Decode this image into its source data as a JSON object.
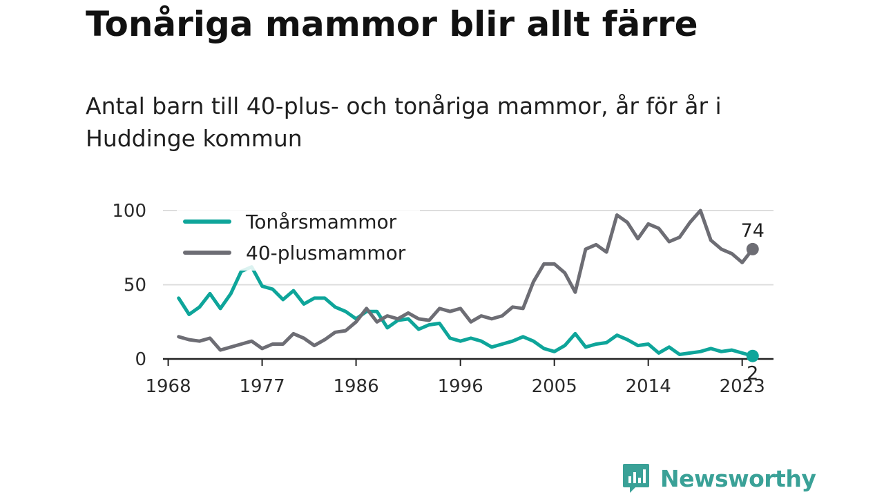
{
  "title": "Tonåriga mammor blir allt färre",
  "subtitle": "Antal barn till 40-plus- och tonåriga mammor, år för år i Huddinge kommun",
  "brand": {
    "name": "Newsworthy",
    "color": "#3aa197"
  },
  "chart_data": {
    "type": "line",
    "x": [
      1969,
      1970,
      1971,
      1972,
      1973,
      1974,
      1975,
      1976,
      1977,
      1978,
      1979,
      1980,
      1981,
      1982,
      1983,
      1984,
      1985,
      1986,
      1987,
      1988,
      1989,
      1990,
      1991,
      1992,
      1993,
      1994,
      1995,
      1996,
      1997,
      1998,
      1999,
      2000,
      2001,
      2002,
      2003,
      2004,
      2005,
      2006,
      2007,
      2008,
      2009,
      2010,
      2011,
      2012,
      2013,
      2014,
      2015,
      2016,
      2017,
      2018,
      2019,
      2020,
      2021,
      2022,
      2023,
      2024
    ],
    "xticks": [
      "1968",
      "1977",
      "1986",
      "1996",
      "2005",
      "2014",
      "2023"
    ],
    "yticks": [
      "0",
      "50",
      "100"
    ],
    "ylim": [
      0,
      100
    ],
    "xlim": [
      1967.5,
      2026
    ],
    "grid": true,
    "legend_position": "top-left",
    "series": [
      {
        "name": "Tonårsmammor",
        "color": "#0ea59a",
        "values": [
          41,
          30,
          35,
          44,
          34,
          44,
          59,
          62,
          49,
          47,
          40,
          46,
          37,
          41,
          41,
          35,
          32,
          27,
          32,
          32,
          21,
          26,
          27,
          20,
          23,
          24,
          14,
          12,
          14,
          12,
          8,
          10,
          12,
          15,
          12,
          7,
          5,
          9,
          17,
          8,
          10,
          11,
          16,
          13,
          9,
          10,
          4,
          8,
          3,
          4,
          5,
          7,
          5,
          6,
          4,
          2
        ],
        "end_label": "2"
      },
      {
        "name": "40-plusmammor",
        "color": "#6d6d74",
        "values": [
          15,
          13,
          12,
          14,
          6,
          8,
          10,
          12,
          7,
          10,
          10,
          17,
          14,
          9,
          13,
          18,
          19,
          25,
          34,
          25,
          29,
          27,
          31,
          27,
          26,
          34,
          32,
          34,
          25,
          29,
          27,
          29,
          35,
          34,
          52,
          64,
          64,
          58,
          45,
          74,
          77,
          72,
          97,
          92,
          81,
          91,
          88,
          79,
          82,
          92,
          100,
          80,
          74,
          71,
          65,
          74
        ],
        "end_label": "74"
      }
    ]
  }
}
